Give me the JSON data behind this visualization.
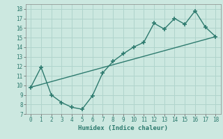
{
  "title": "",
  "xlabel": "Humidex (Indice chaleur)",
  "ylabel": "",
  "bg_color": "#cce8e0",
  "line_color": "#2d7a6e",
  "grid_color": "#b0d4cc",
  "xlim": [
    -0.5,
    18.5
  ],
  "ylim": [
    7,
    18.5
  ],
  "xticks": [
    0,
    1,
    2,
    3,
    4,
    5,
    6,
    7,
    8,
    9,
    10,
    11,
    12,
    13,
    14,
    15,
    16,
    17,
    18
  ],
  "yticks": [
    7,
    8,
    9,
    10,
    11,
    12,
    13,
    14,
    15,
    16,
    17,
    18
  ],
  "zigzag_x": [
    0,
    1,
    2,
    3,
    4,
    5,
    6,
    7,
    8,
    9,
    10,
    11,
    12,
    13,
    14,
    15,
    16,
    17,
    18
  ],
  "zigzag_y": [
    9.8,
    11.9,
    9.0,
    8.2,
    7.7,
    7.5,
    8.9,
    11.3,
    12.5,
    13.3,
    14.0,
    14.5,
    16.5,
    15.9,
    17.0,
    16.4,
    17.8,
    16.1,
    15.1
  ],
  "trend_x": [
    0,
    18
  ],
  "trend_y": [
    9.8,
    15.1
  ]
}
